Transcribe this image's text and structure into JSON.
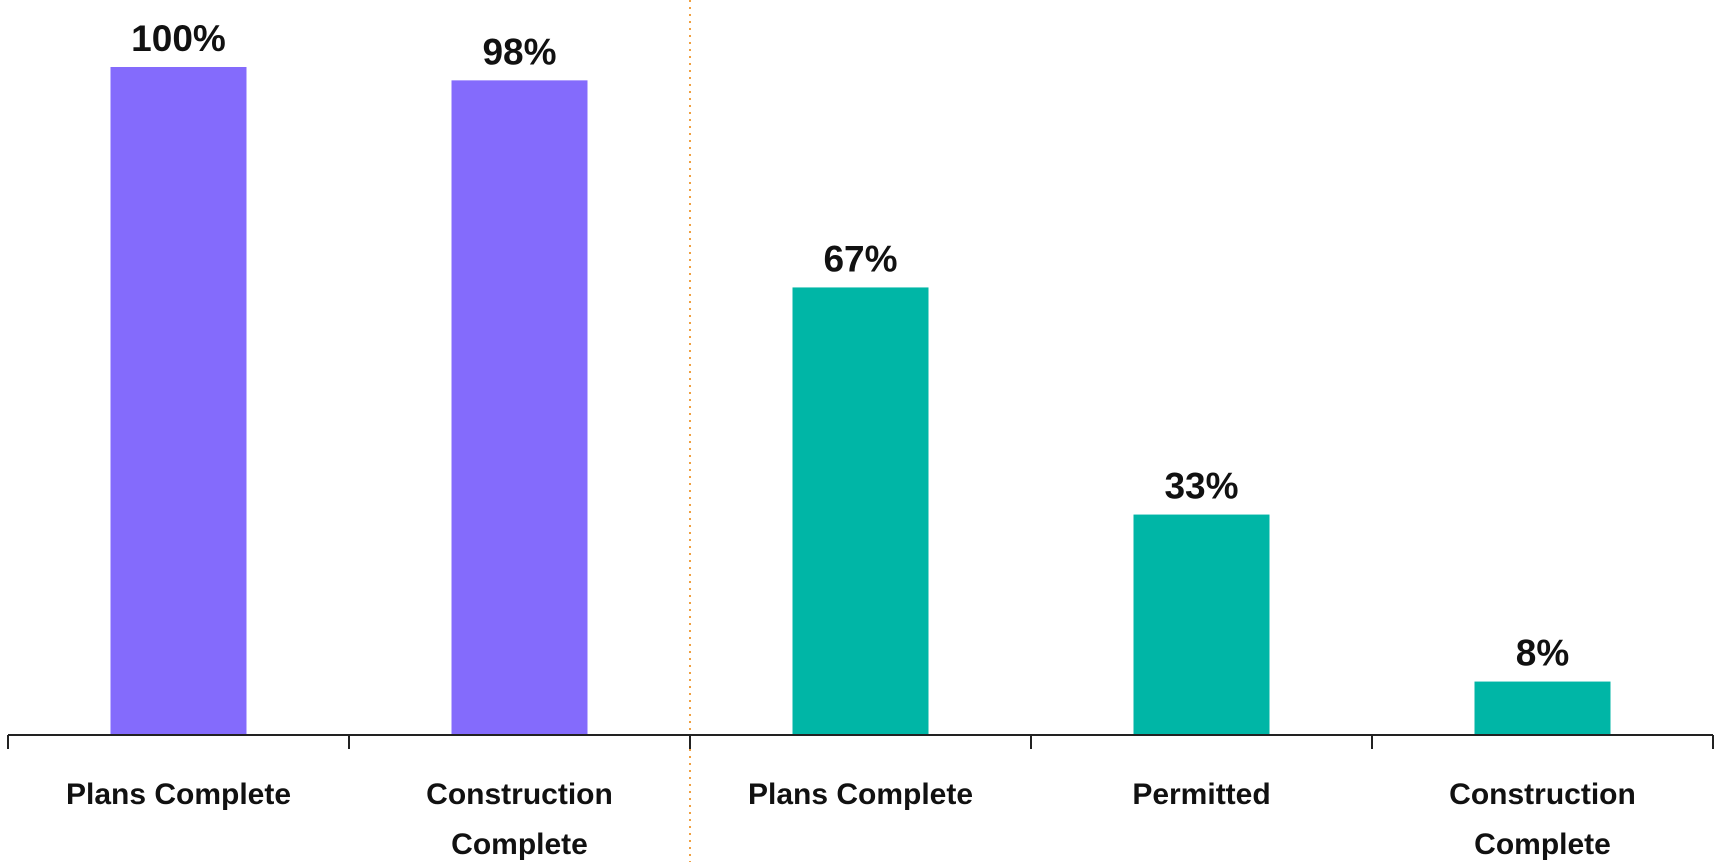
{
  "chart_data": {
    "type": "bar",
    "categories": [
      [
        "Plans Complete"
      ],
      [
        "Construction",
        "Complete"
      ],
      [
        "Plans Complete"
      ],
      [
        "Permitted"
      ],
      [
        "Construction",
        "Complete"
      ]
    ],
    "values": [
      100,
      98,
      67,
      33,
      8
    ],
    "value_labels": [
      "100%",
      "98%",
      "67%",
      "33%",
      "8%"
    ],
    "bar_colors": [
      "#846bfc",
      "#846bfc",
      "#00b6a6",
      "#00b6a6",
      "#00b6a6"
    ],
    "ylim": [
      0,
      100
    ],
    "group_divider": {
      "after_index": 1,
      "color": "#f0a040",
      "style": "dotted"
    },
    "grid": false,
    "legend": "none"
  }
}
